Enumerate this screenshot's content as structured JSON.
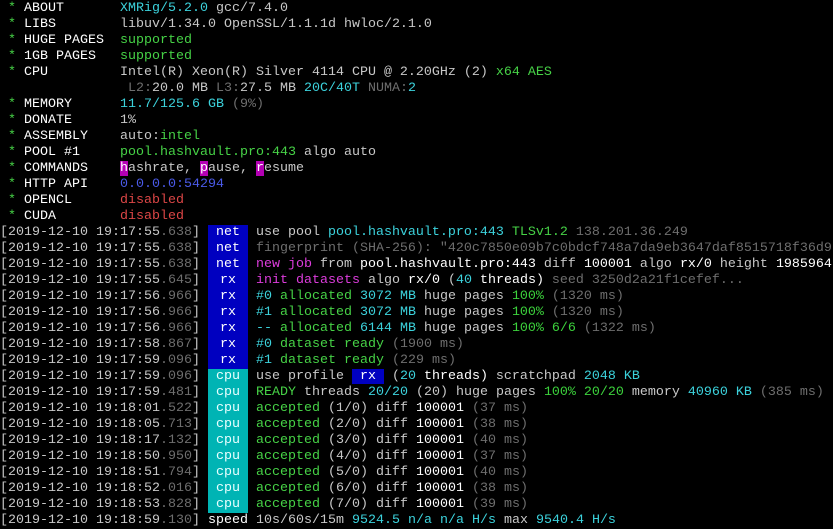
{
  "colors": {
    "net_tag": "#0000c0",
    "rx_tag": "#0000c0",
    "cpu_tag": "#00b4b4",
    "green": "#46d246",
    "cyan": "#3cd2dc",
    "magenta": "#dc3cdc",
    "red": "#dc4646",
    "blue": "#4a5ae8",
    "gray": "#6e6e6e"
  },
  "header": [
    {
      "label": "ABOUT",
      "segs": [
        {
          "t": "XMRig/5.2.0",
          "c": "c"
        },
        {
          "t": " gcc/7.4.0",
          "c": "w"
        }
      ]
    },
    {
      "label": "LIBS",
      "segs": [
        {
          "t": "libuv/1.34.0 OpenSSL/1.1.1d hwloc/2.1.0",
          "c": "w"
        }
      ]
    },
    {
      "label": "HUGE PAGES",
      "segs": [
        {
          "t": "supported",
          "c": "g"
        }
      ]
    },
    {
      "label": "1GB PAGES",
      "segs": [
        {
          "t": "supported",
          "c": "g"
        }
      ]
    },
    {
      "label": "CPU",
      "segs": [
        {
          "t": "Intel(R) Xeon(R) Silver 4114 CPU @ 2.20GHz (2) ",
          "c": "w"
        },
        {
          "t": "x64 AES",
          "c": "g"
        }
      ]
    },
    {
      "label": "",
      "segs": [
        {
          "t": "L2:",
          "c": "d"
        },
        {
          "t": "20.0 MB ",
          "c": "w"
        },
        {
          "t": "L3:",
          "c": "d"
        },
        {
          "t": "27.5 MB ",
          "c": "w"
        },
        {
          "t": "20C/40T ",
          "c": "c"
        },
        {
          "t": "NUMA:",
          "c": "d"
        },
        {
          "t": "2",
          "c": "c"
        }
      ]
    },
    {
      "label": "MEMORY",
      "segs": [
        {
          "t": "11.7/125.6 GB ",
          "c": "c"
        },
        {
          "t": "(9%)",
          "c": "d"
        }
      ]
    },
    {
      "label": "DONATE",
      "segs": [
        {
          "t": "1%",
          "c": "w"
        }
      ]
    },
    {
      "label": "ASSEMBLY",
      "segs": [
        {
          "t": "auto:",
          "c": "w"
        },
        {
          "t": "intel",
          "c": "g"
        }
      ]
    },
    {
      "label": "POOL #1",
      "segs": [
        {
          "t": "pool.hashvault.pro:443",
          "c": "g"
        },
        {
          "t": " algo auto",
          "c": "w"
        }
      ]
    },
    {
      "label": "COMMANDS",
      "segs": [
        {
          "t": "h",
          "c": "hl"
        },
        {
          "t": "ashrate, ",
          "c": "w"
        },
        {
          "t": "p",
          "c": "hl"
        },
        {
          "t": "ause, ",
          "c": "w"
        },
        {
          "t": "r",
          "c": "hl"
        },
        {
          "t": "esume",
          "c": "w"
        }
      ]
    },
    {
      "label": "HTTP API",
      "segs": [
        {
          "t": "0.0.0.0:54294",
          "c": "b"
        }
      ]
    },
    {
      "label": "OPENCL",
      "segs": [
        {
          "t": "disabled",
          "c": "r"
        }
      ]
    },
    {
      "label": "CUDA",
      "segs": [
        {
          "t": "disabled",
          "c": "r"
        }
      ]
    }
  ],
  "log": [
    {
      "ts": "2019-12-10 19:17:55",
      "ms": ".638",
      "tag": "net",
      "segs": [
        {
          "t": "use pool ",
          "c": "w"
        },
        {
          "t": "pool.hashvault.pro:443 ",
          "c": "c"
        },
        {
          "t": "TLSv1.2 ",
          "c": "g"
        },
        {
          "t": "138.201.36.249",
          "c": "d"
        }
      ]
    },
    {
      "ts": "2019-12-10 19:17:55",
      "ms": ".638",
      "tag": "net",
      "segs": [
        {
          "t": "fingerprint (SHA-256): \"420c7850e09b7c0bdcf748a7da9eb3647daf8515718f36d9",
          "c": "d"
        }
      ]
    },
    {
      "ts": "2019-12-10 19:17:55",
      "ms": ".638",
      "tag": "net",
      "segs": [
        {
          "t": "new job",
          "c": "m"
        },
        {
          "t": " from ",
          "c": "w"
        },
        {
          "t": "pool.hashvault.pro:443",
          "c": "W"
        },
        {
          "t": " diff ",
          "c": "w"
        },
        {
          "t": "100001",
          "c": "W"
        },
        {
          "t": " algo ",
          "c": "w"
        },
        {
          "t": "rx/0",
          "c": "W"
        },
        {
          "t": " height ",
          "c": "w"
        },
        {
          "t": "1985964",
          "c": "W"
        }
      ]
    },
    {
      "ts": "2019-12-10 19:17:55",
      "ms": ".645",
      "tag": "rx",
      "segs": [
        {
          "t": "init datasets",
          "c": "m"
        },
        {
          "t": " algo ",
          "c": "w"
        },
        {
          "t": "rx/0",
          "c": "W"
        },
        {
          "t": " (",
          "c": "w"
        },
        {
          "t": "40",
          "c": "c"
        },
        {
          "t": " threads)",
          "c": "W"
        },
        {
          "t": " seed 3250d2a21f1cefef...",
          "c": "d"
        }
      ]
    },
    {
      "ts": "2019-12-10 19:17:56",
      "ms": ".966",
      "tag": "rx",
      "segs": [
        {
          "t": "#0",
          "c": "c"
        },
        {
          "t": " allocated ",
          "c": "g"
        },
        {
          "t": "3072 MB",
          "c": "c"
        },
        {
          "t": " huge pages ",
          "c": "w"
        },
        {
          "t": "100%",
          "c": "s"
        },
        {
          "t": " (1320 ms)",
          "c": "d"
        }
      ]
    },
    {
      "ts": "2019-12-10 19:17:56",
      "ms": ".966",
      "tag": "rx",
      "segs": [
        {
          "t": "#1",
          "c": "c"
        },
        {
          "t": " allocated ",
          "c": "g"
        },
        {
          "t": "3072 MB",
          "c": "c"
        },
        {
          "t": " huge pages ",
          "c": "w"
        },
        {
          "t": "100%",
          "c": "s"
        },
        {
          "t": " (1320 ms)",
          "c": "d"
        }
      ]
    },
    {
      "ts": "2019-12-10 19:17:56",
      "ms": ".966",
      "tag": "rx",
      "segs": [
        {
          "t": "--",
          "c": "c"
        },
        {
          "t": " allocated ",
          "c": "g"
        },
        {
          "t": "6144 MB",
          "c": "c"
        },
        {
          "t": " huge pages ",
          "c": "w"
        },
        {
          "t": "100% 6/6",
          "c": "s"
        },
        {
          "t": " (1322 ms)",
          "c": "d"
        }
      ]
    },
    {
      "ts": "2019-12-10 19:17:58",
      "ms": ".867",
      "tag": "rx",
      "segs": [
        {
          "t": "#0",
          "c": "c"
        },
        {
          "t": " dataset ready",
          "c": "g"
        },
        {
          "t": " (1900 ms)",
          "c": "d"
        }
      ]
    },
    {
      "ts": "2019-12-10 19:17:59",
      "ms": ".096",
      "tag": "rx",
      "segs": [
        {
          "t": "#1",
          "c": "c"
        },
        {
          "t": " dataset ready",
          "c": "g"
        },
        {
          "t": " (229 ms)",
          "c": "d"
        }
      ]
    },
    {
      "ts": "2019-12-10 19:17:59",
      "ms": ".096",
      "tag": "cpu",
      "segs": [
        {
          "t": "use profile ",
          "c": "w"
        },
        {
          "t": "rx",
          "c": "inv"
        },
        {
          "t": " (",
          "c": "w"
        },
        {
          "t": "20",
          "c": "c"
        },
        {
          "t": " threads)",
          "c": "W"
        },
        {
          "t": " scratchpad ",
          "c": "w"
        },
        {
          "t": "2048 KB",
          "c": "c"
        }
      ]
    },
    {
      "ts": "2019-12-10 19:17:59",
      "ms": ".481",
      "tag": "cpu",
      "segs": [
        {
          "t": "READY",
          "c": "g"
        },
        {
          "t": " threads ",
          "c": "w"
        },
        {
          "t": "20/20",
          "c": "c"
        },
        {
          "t": " (20)",
          "c": "w"
        },
        {
          "t": " huge pages ",
          "c": "w"
        },
        {
          "t": "100% 20/20",
          "c": "s"
        },
        {
          "t": " memory ",
          "c": "w"
        },
        {
          "t": "40960 KB",
          "c": "c"
        },
        {
          "t": " (385 ms)",
          "c": "d"
        }
      ]
    },
    {
      "ts": "2019-12-10 19:18:01",
      "ms": ".522",
      "tag": "cpu",
      "segs": [
        {
          "t": "accepted",
          "c": "g"
        },
        {
          "t": " (1/0)",
          "c": "w"
        },
        {
          "t": " diff ",
          "c": "w"
        },
        {
          "t": "100001",
          "c": "W"
        },
        {
          "t": " (37 ms)",
          "c": "d"
        }
      ]
    },
    {
      "ts": "2019-12-10 19:18:05",
      "ms": ".713",
      "tag": "cpu",
      "segs": [
        {
          "t": "accepted",
          "c": "g"
        },
        {
          "t": " (2/0)",
          "c": "w"
        },
        {
          "t": " diff ",
          "c": "w"
        },
        {
          "t": "100001",
          "c": "W"
        },
        {
          "t": " (38 ms)",
          "c": "d"
        }
      ]
    },
    {
      "ts": "2019-12-10 19:18:17",
      "ms": ".132",
      "tag": "cpu",
      "segs": [
        {
          "t": "accepted",
          "c": "g"
        },
        {
          "t": " (3/0)",
          "c": "w"
        },
        {
          "t": " diff ",
          "c": "w"
        },
        {
          "t": "100001",
          "c": "W"
        },
        {
          "t": " (40 ms)",
          "c": "d"
        }
      ]
    },
    {
      "ts": "2019-12-10 19:18:50",
      "ms": ".950",
      "tag": "cpu",
      "segs": [
        {
          "t": "accepted",
          "c": "g"
        },
        {
          "t": " (4/0)",
          "c": "w"
        },
        {
          "t": " diff ",
          "c": "w"
        },
        {
          "t": "100001",
          "c": "W"
        },
        {
          "t": " (37 ms)",
          "c": "d"
        }
      ]
    },
    {
      "ts": "2019-12-10 19:18:51",
      "ms": ".794",
      "tag": "cpu",
      "segs": [
        {
          "t": "accepted",
          "c": "g"
        },
        {
          "t": " (5/0)",
          "c": "w"
        },
        {
          "t": " diff ",
          "c": "w"
        },
        {
          "t": "100001",
          "c": "W"
        },
        {
          "t": " (40 ms)",
          "c": "d"
        }
      ]
    },
    {
      "ts": "2019-12-10 19:18:52",
      "ms": ".016",
      "tag": "cpu",
      "segs": [
        {
          "t": "accepted",
          "c": "g"
        },
        {
          "t": " (6/0)",
          "c": "w"
        },
        {
          "t": " diff ",
          "c": "w"
        },
        {
          "t": "100001",
          "c": "W"
        },
        {
          "t": " (38 ms)",
          "c": "d"
        }
      ]
    },
    {
      "ts": "2019-12-10 19:18:53",
      "ms": ".828",
      "tag": "cpu",
      "segs": [
        {
          "t": "accepted",
          "c": "g"
        },
        {
          "t": " (7/0)",
          "c": "w"
        },
        {
          "t": " diff ",
          "c": "w"
        },
        {
          "t": "100001",
          "c": "W"
        },
        {
          "t": " (39 ms)",
          "c": "d"
        }
      ]
    },
    {
      "ts": "2019-12-10 19:18:59",
      "ms": ".130",
      "tag": "",
      "segs": [
        {
          "t": "speed",
          "c": "W"
        },
        {
          "t": " 10s/60s/15m ",
          "c": "w"
        },
        {
          "t": "9524.5",
          "c": "c"
        },
        {
          "t": " n/a n/a",
          "c": "c"
        },
        {
          "t": " H/s",
          "c": "c"
        },
        {
          "t": " max ",
          "c": "w"
        },
        {
          "t": "9540.4 H/s",
          "c": "c"
        }
      ]
    }
  ]
}
